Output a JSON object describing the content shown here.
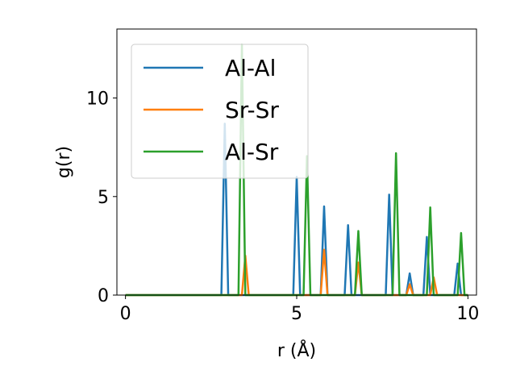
{
  "chart_data": {
    "type": "line",
    "xlabel": "r (Å)",
    "ylabel": "g(r)",
    "xlim": [
      -0.25,
      10.25
    ],
    "ylim": [
      0,
      13.5
    ],
    "xticks": [
      0,
      5,
      10
    ],
    "yticks": [
      0,
      5,
      10
    ],
    "grid": false,
    "legend_position": "upper-left",
    "series": [
      {
        "name": "Al-Al",
        "color": "#1f77b4",
        "x": [
          0,
          2.8,
          2.9,
          3.0,
          4.9,
          5.0,
          5.1,
          5.7,
          5.8,
          5.9,
          6.4,
          6.5,
          6.6,
          7.6,
          7.7,
          7.8,
          8.2,
          8.3,
          8.4,
          8.7,
          8.8,
          8.9,
          9.6,
          9.7,
          9.8,
          10.0
        ],
        "y": [
          0,
          0,
          8.7,
          0,
          0,
          6.0,
          0,
          0,
          4.5,
          0,
          0,
          3.55,
          0,
          0,
          5.1,
          0,
          0,
          1.1,
          0,
          0,
          2.95,
          0,
          0,
          1.6,
          0,
          0
        ]
      },
      {
        "name": "Sr-Sr",
        "color": "#ff7f0e",
        "x": [
          0,
          3.4,
          3.5,
          3.6,
          5.7,
          5.8,
          5.9,
          6.7,
          6.8,
          6.9,
          8.2,
          8.3,
          8.4,
          8.9,
          9.0,
          9.1,
          10.0
        ],
        "y": [
          0,
          0,
          2.0,
          0,
          0,
          2.3,
          0,
          0,
          1.65,
          0,
          0,
          0.55,
          0,
          0,
          0.9,
          0,
          0
        ]
      },
      {
        "name": "Al-Sr",
        "color": "#2ca02c",
        "x": [
          0,
          3.3,
          3.4,
          3.5,
          5.2,
          5.3,
          5.4,
          6.7,
          6.8,
          6.9,
          7.8,
          7.9,
          8.0,
          8.8,
          8.9,
          9.0,
          9.7,
          9.8,
          9.9,
          10.0
        ],
        "y": [
          0,
          0,
          12.7,
          0,
          0,
          7.05,
          0,
          0,
          3.25,
          0,
          0,
          7.2,
          0,
          0,
          4.45,
          0,
          0,
          3.15,
          0,
          0
        ]
      }
    ]
  }
}
